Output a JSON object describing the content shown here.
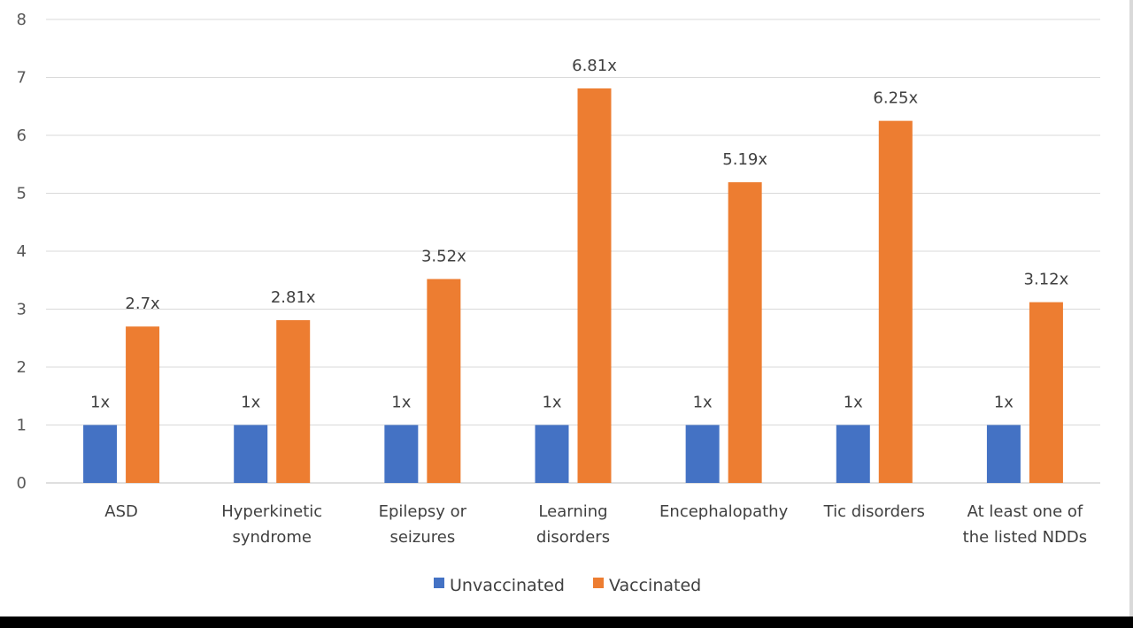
{
  "chart_data": {
    "type": "bar",
    "categories": [
      [
        "ASD"
      ],
      [
        "Hyperkinetic",
        "syndrome"
      ],
      [
        "Epilepsy or",
        "seizures"
      ],
      [
        "Learning",
        "disorders"
      ],
      [
        "Encephalopathy"
      ],
      [
        "Tic disorders"
      ],
      [
        "At least one of",
        "the listed NDDs"
      ]
    ],
    "series": [
      {
        "name": "Unvaccinated",
        "color": "#4472c4",
        "values": [
          1,
          1,
          1,
          1,
          1,
          1,
          1
        ],
        "labels": [
          "1x",
          "1x",
          "1x",
          "1x",
          "1x",
          "1x",
          "1x"
        ]
      },
      {
        "name": "Vaccinated",
        "color": "#ed7d31",
        "values": [
          2.7,
          2.81,
          3.52,
          6.81,
          5.19,
          6.25,
          3.12
        ],
        "labels": [
          "2.7x",
          "2.81x",
          "3.52x",
          "6.81x",
          "5.19x",
          "6.25x",
          "3.12x"
        ]
      }
    ],
    "ylim": [
      0,
      8
    ],
    "yticks": [
      "0",
      "1",
      "2",
      "3",
      "4",
      "5",
      "6",
      "7",
      "8"
    ],
    "grid": true,
    "legend_position": "bottom"
  }
}
